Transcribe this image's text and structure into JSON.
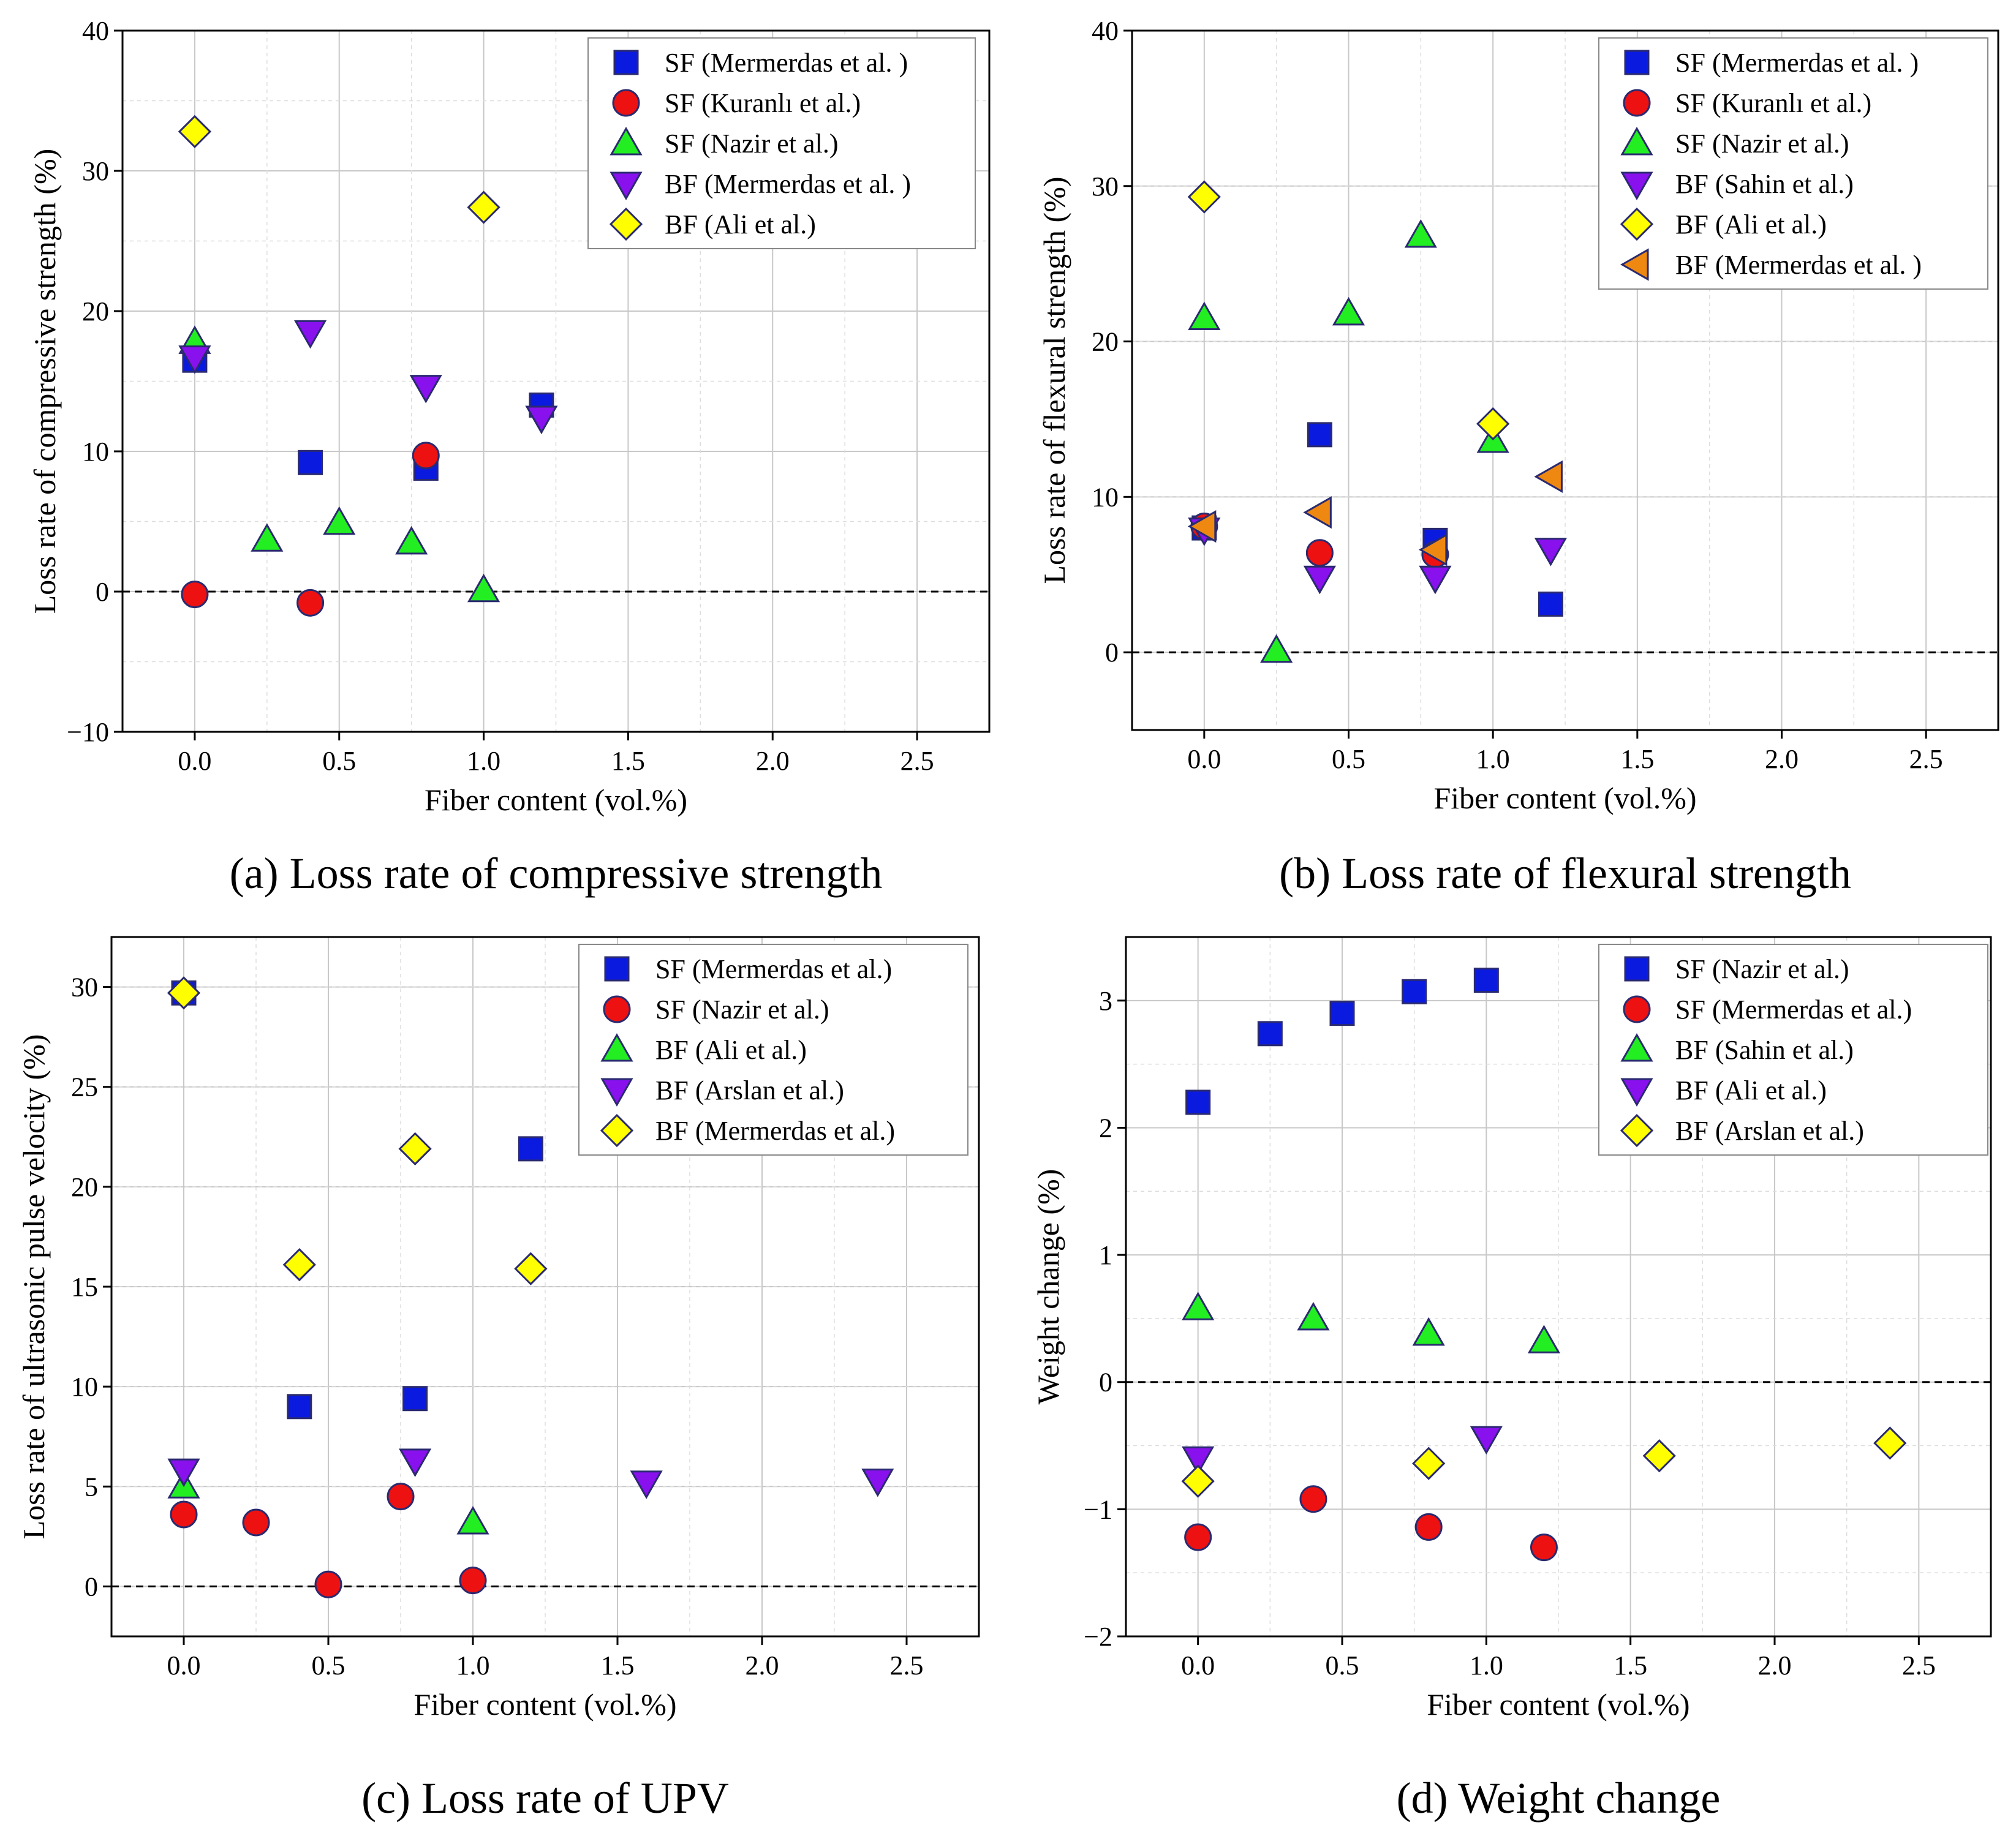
{
  "colors": {
    "blue": "#0a1adf",
    "red": "#ee1111",
    "green": "#22ee22",
    "purple": "#8811ee",
    "yellow": "#ffff00",
    "orange": "#ee8811"
  },
  "chart_data": [
    {
      "type": "scatter",
      "caption": "(a) Loss rate of compressive strength",
      "xlabel": "Fiber content (vol.%)",
      "ylabel": "Loss rate of compressive strength (%)",
      "xlim": [
        -0.25,
        2.75
      ],
      "ylim": [
        -10,
        40
      ],
      "xticks": [
        "0.0",
        "0.5",
        "1.0",
        "1.5",
        "2.0",
        "2.5"
      ],
      "xtick_values": [
        0,
        0.5,
        1,
        1.5,
        2,
        2.5
      ],
      "yticks": [
        "−10",
        "0",
        "10",
        "20",
        "30",
        "40"
      ],
      "ytick_values": [
        -10,
        0,
        10,
        20,
        30,
        40
      ],
      "grid": true,
      "legend_position": "top-right",
      "series": [
        {
          "name": "SF (Mermerdas et al. )",
          "marker": "square",
          "color": "blue",
          "x": [
            0,
            0.4,
            0.8,
            1.2
          ],
          "y": [
            16.5,
            9.2,
            8.8,
            13.3
          ]
        },
        {
          "name": "SF (Kuranlı et al.)",
          "marker": "circle",
          "color": "red",
          "x": [
            0,
            0.4,
            0.8
          ],
          "y": [
            -0.2,
            -0.8,
            9.7
          ]
        },
        {
          "name": "SF (Nazir et al.)",
          "marker": "triangle-up",
          "color": "green",
          "x": [
            0,
            0.25,
            0.5,
            0.75,
            1.0
          ],
          "y": [
            17.8,
            3.7,
            4.9,
            3.5,
            0.1
          ]
        },
        {
          "name": "BF (Mermerdas et al. )",
          "marker": "triangle-down",
          "color": "purple",
          "x": [
            0,
            0.4,
            0.8,
            1.2
          ],
          "y": [
            16.7,
            18.5,
            14.6,
            12.4
          ]
        },
        {
          "name": "BF (Ali et al.)",
          "marker": "diamond",
          "color": "yellow",
          "x": [
            0,
            1.0
          ],
          "y": [
            32.8,
            27.4
          ]
        }
      ]
    },
    {
      "type": "scatter",
      "caption": "(b) Loss rate of flexural strength",
      "xlabel": "Fiber content (vol.%)",
      "ylabel": "Loss rate of flexural strength (%)",
      "xlim": [
        -0.25,
        2.75
      ],
      "ylim": [
        -5,
        40
      ],
      "xticks": [
        "0.0",
        "0.5",
        "1.0",
        "1.5",
        "2.0",
        "2.5"
      ],
      "xtick_values": [
        0,
        0.5,
        1,
        1.5,
        2,
        2.5
      ],
      "yticks": [
        "0",
        "10",
        "20",
        "30",
        "40"
      ],
      "ytick_values": [
        0,
        10,
        20,
        30,
        40
      ],
      "grid": true,
      "legend_position": "top-right",
      "series": [
        {
          "name": "SF (Mermerdas et al. )",
          "marker": "square",
          "color": "blue",
          "x": [
            0,
            0.4,
            0.8,
            1.2
          ],
          "y": [
            8.0,
            14.0,
            7.2,
            3.1
          ]
        },
        {
          "name": "SF (Kuranlı et al.)",
          "marker": "circle",
          "color": "red",
          "x": [
            0,
            0.4,
            0.8
          ],
          "y": [
            8.1,
            6.4,
            6.3
          ]
        },
        {
          "name": "SF (Nazir et al.)",
          "marker": "triangle-up",
          "color": "green",
          "x": [
            0,
            0.25,
            0.5,
            0.75,
            1.0
          ],
          "y": [
            21.5,
            0.1,
            21.8,
            26.8,
            13.6
          ]
        },
        {
          "name": "BF (Sahin et al.)",
          "marker": "triangle-down",
          "color": "purple",
          "x": [
            0,
            0.4,
            0.8,
            1.2
          ],
          "y": [
            7.9,
            4.8,
            4.8,
            6.6
          ]
        },
        {
          "name": "BF (Ali et al.)",
          "marker": "diamond",
          "color": "yellow",
          "x": [
            0,
            1.0
          ],
          "y": [
            29.3,
            14.7
          ]
        },
        {
          "name": "BF (Mermerdas et al. )",
          "marker": "triangle-left",
          "color": "orange",
          "x": [
            0,
            0.4,
            0.8,
            1.2
          ],
          "y": [
            8.1,
            9.0,
            6.6,
            11.3
          ]
        }
      ]
    },
    {
      "type": "scatter",
      "caption": "(c) Loss rate of UPV",
      "xlabel": "Fiber content (vol.%)",
      "ylabel": "Loss rate of ultrasonic pulse velocity (%)",
      "xlim": [
        -0.25,
        2.75
      ],
      "ylim": [
        -2.5,
        32.5
      ],
      "xticks": [
        "0.0",
        "0.5",
        "1.0",
        "1.5",
        "2.0",
        "2.5"
      ],
      "xtick_values": [
        0,
        0.5,
        1,
        1.5,
        2,
        2.5
      ],
      "yticks": [
        "0",
        "5",
        "10",
        "15",
        "20",
        "25",
        "30"
      ],
      "ytick_values": [
        0,
        5,
        10,
        15,
        20,
        25,
        30
      ],
      "grid": true,
      "legend_position": "top-right",
      "series": [
        {
          "name": "SF (Mermerdas et al.)",
          "marker": "square",
          "color": "blue",
          "x": [
            0,
            0.4,
            0.8,
            1.2
          ],
          "y": [
            29.7,
            9.0,
            9.4,
            21.9
          ]
        },
        {
          "name": "SF (Nazir et al.)",
          "marker": "circle",
          "color": "red",
          "x": [
            0,
            0.25,
            0.5,
            0.75,
            1.0
          ],
          "y": [
            3.6,
            3.2,
            0.1,
            4.5,
            0.3
          ]
        },
        {
          "name": "BF (Ali et al.)",
          "marker": "triangle-up",
          "color": "green",
          "x": [
            0,
            1.0
          ],
          "y": [
            5.0,
            3.2
          ]
        },
        {
          "name": "BF (Arslan et al.)",
          "marker": "triangle-down",
          "color": "purple",
          "x": [
            0,
            0.8,
            1.6,
            2.4
          ],
          "y": [
            5.8,
            6.3,
            5.2,
            5.3
          ]
        },
        {
          "name": "BF (Mermerdas et al.)",
          "marker": "diamond",
          "color": "yellow",
          "x": [
            0,
            0.4,
            0.8,
            1.2
          ],
          "y": [
            29.7,
            16.1,
            21.9,
            15.9
          ]
        }
      ]
    },
    {
      "type": "scatter",
      "caption": "(d) Weight change",
      "xlabel": "Fiber content (vol.%)",
      "ylabel": "Weight change (%)",
      "xlim": [
        -0.25,
        2.75
      ],
      "ylim": [
        -2,
        3.5
      ],
      "xticks": [
        "0.0",
        "0.5",
        "1.0",
        "1.5",
        "2.0",
        "2.5"
      ],
      "xtick_values": [
        0,
        0.5,
        1,
        1.5,
        2,
        2.5
      ],
      "yticks": [
        "−2",
        "−1",
        "0",
        "1",
        "2",
        "3"
      ],
      "ytick_values": [
        -2,
        -1,
        0,
        1,
        2,
        3
      ],
      "grid": true,
      "legend_position": "top-right",
      "series": [
        {
          "name": "SF (Nazir et al.)",
          "marker": "square",
          "color": "blue",
          "x": [
            0,
            0.25,
            0.5,
            0.75,
            1.0
          ],
          "y": [
            2.2,
            2.74,
            2.9,
            3.07,
            3.16
          ]
        },
        {
          "name": "SF (Mermerdas et al.)",
          "marker": "circle",
          "color": "red",
          "x": [
            0,
            0.4,
            0.8,
            1.2
          ],
          "y": [
            -1.22,
            -0.92,
            -1.14,
            -1.3
          ]
        },
        {
          "name": "BF (Sahin et al.)",
          "marker": "triangle-up",
          "color": "green",
          "x": [
            0,
            0.4,
            0.8,
            1.2
          ],
          "y": [
            0.58,
            0.5,
            0.38,
            0.32
          ]
        },
        {
          "name": "BF (Ali et al.)",
          "marker": "triangle-down",
          "color": "purple",
          "x": [
            0,
            1.0
          ],
          "y": [
            -0.6,
            -0.44
          ]
        },
        {
          "name": "BF (Arslan et al.)",
          "marker": "diamond",
          "color": "yellow",
          "x": [
            0,
            0.8,
            1.6,
            2.4
          ],
          "y": [
            -0.78,
            -0.64,
            -0.58,
            -0.48
          ]
        }
      ]
    }
  ]
}
